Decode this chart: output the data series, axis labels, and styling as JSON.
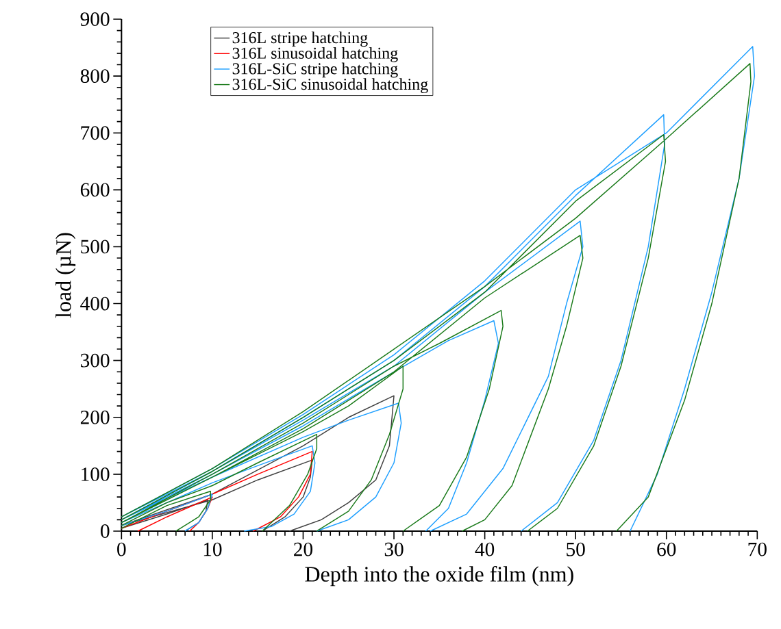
{
  "chart_data": {
    "type": "line",
    "xlabel": "Depth into the oxide film (nm)",
    "ylabel": "load (µN)",
    "xlim": [
      0,
      70
    ],
    "ylim": [
      0,
      900
    ],
    "xticks": [
      0,
      10,
      20,
      30,
      40,
      50,
      60,
      70
    ],
    "yticks": [
      0,
      100,
      200,
      300,
      400,
      500,
      600,
      700,
      800,
      900
    ],
    "legend": "top left",
    "grid": false,
    "marker": "none",
    "line_style": "solid",
    "series": [
      {
        "name": "316L stripe hatching",
        "color": "#404040",
        "x": [
          0,
          5,
          9.5,
          9.3,
          8.5,
          7,
          null,
          0,
          10,
          15,
          21,
          20.8,
          20,
          18,
          15.5,
          null,
          0,
          10,
          20,
          25,
          30,
          29.5,
          28,
          25,
          22,
          18.5
        ],
        "values": [
          5,
          30,
          55,
          35,
          15,
          0,
          null,
          10,
          55,
          90,
          125,
          95,
          60,
          25,
          0,
          null,
          10,
          65,
          150,
          200,
          238,
          150,
          90,
          50,
          20,
          0
        ]
      },
      {
        "name": "316L sinusoidal hatching",
        "color": "#ff0000",
        "x": [
          1.8,
          5,
          10,
          9.5,
          8.5,
          7.5,
          null,
          0,
          10,
          15,
          21,
          20.8,
          19.5,
          17.5,
          14.5
        ],
        "values": [
          0,
          25,
          60,
          40,
          15,
          0,
          null,
          5,
          65,
          100,
          140,
          100,
          60,
          25,
          0
        ]
      },
      {
        "name": "316L-SiC stripe hatching",
        "color": "#1e9fff",
        "x": [
          0,
          5,
          10,
          9.5,
          8.5,
          7,
          null,
          0,
          5,
          10,
          15,
          21,
          21.3,
          20.8,
          19,
          16.5,
          13.5,
          null,
          0,
          10,
          20,
          25,
          30.5,
          30.8,
          30,
          28,
          25,
          21.5,
          null,
          0,
          10,
          20,
          30,
          36,
          41,
          41.5,
          40,
          38,
          36,
          33.5,
          null,
          0,
          10,
          20,
          30,
          40,
          50.5,
          50.8,
          49,
          47,
          42,
          38,
          34,
          null,
          0,
          10,
          20,
          30,
          40,
          50,
          59.7,
          59.8,
          58,
          55,
          52,
          48,
          44,
          null,
          0,
          10,
          20,
          30,
          40,
          50,
          60,
          69.5,
          69.7,
          68,
          65,
          62,
          59,
          56
        ],
        "values": [
          10,
          35,
          65,
          40,
          15,
          0,
          null,
          15,
          50,
          85,
          115,
          150,
          120,
          70,
          30,
          8,
          0,
          null,
          20,
          95,
          165,
          195,
          225,
          190,
          120,
          60,
          20,
          0,
          null,
          20,
          100,
          185,
          280,
          335,
          370,
          330,
          230,
          120,
          40,
          0,
          null,
          20,
          105,
          195,
          290,
          420,
          545,
          500,
          400,
          272,
          110,
          30,
          0,
          null,
          25,
          105,
          200,
          300,
          430,
          590,
          732,
          680,
          500,
          300,
          160,
          50,
          0,
          null,
          25,
          110,
          205,
          310,
          440,
          600,
          700,
          852,
          800,
          620,
          420,
          250,
          100,
          0
        ]
      },
      {
        "name": "316L-SiC sinusoidal hatching",
        "color": "#1a7a1a",
        "x": [
          0,
          5,
          9.8,
          9.8,
          8.5,
          6,
          null,
          0,
          5,
          10,
          15,
          21.5,
          21.5,
          20.5,
          18.5,
          15.5,
          null,
          0,
          10,
          20,
          25,
          31,
          31,
          29.5,
          27.5,
          25,
          21.5,
          null,
          0,
          10,
          20,
          30,
          35,
          41.8,
          42,
          40.5,
          38,
          35,
          31,
          null,
          0,
          10,
          20,
          30,
          40,
          50.5,
          50.8,
          49,
          47,
          43,
          40,
          37.5,
          null,
          0,
          10,
          20,
          30,
          40,
          50,
          59.7,
          59.9,
          58,
          55,
          52,
          48,
          44.7,
          null,
          0,
          10,
          20,
          30,
          40,
          50,
          60,
          69.2,
          69.3,
          68,
          65,
          62,
          58,
          54.5
        ],
        "values": [
          5,
          45,
          70,
          55,
          25,
          0,
          null,
          10,
          50,
          80,
          120,
          170,
          145,
          100,
          45,
          0,
          null,
          15,
          95,
          175,
          220,
          290,
          250,
          170,
          90,
          35,
          0,
          null,
          15,
          100,
          190,
          290,
          330,
          388,
          360,
          250,
          130,
          45,
          0,
          null,
          15,
          95,
          180,
          280,
          410,
          520,
          480,
          360,
          250,
          80,
          20,
          0,
          null,
          20,
          105,
          200,
          300,
          420,
          580,
          697,
          650,
          480,
          290,
          150,
          40,
          0,
          null,
          25,
          110,
          210,
          320,
          430,
          550,
          690,
          822,
          790,
          620,
          400,
          230,
          60,
          0
        ]
      }
    ]
  }
}
